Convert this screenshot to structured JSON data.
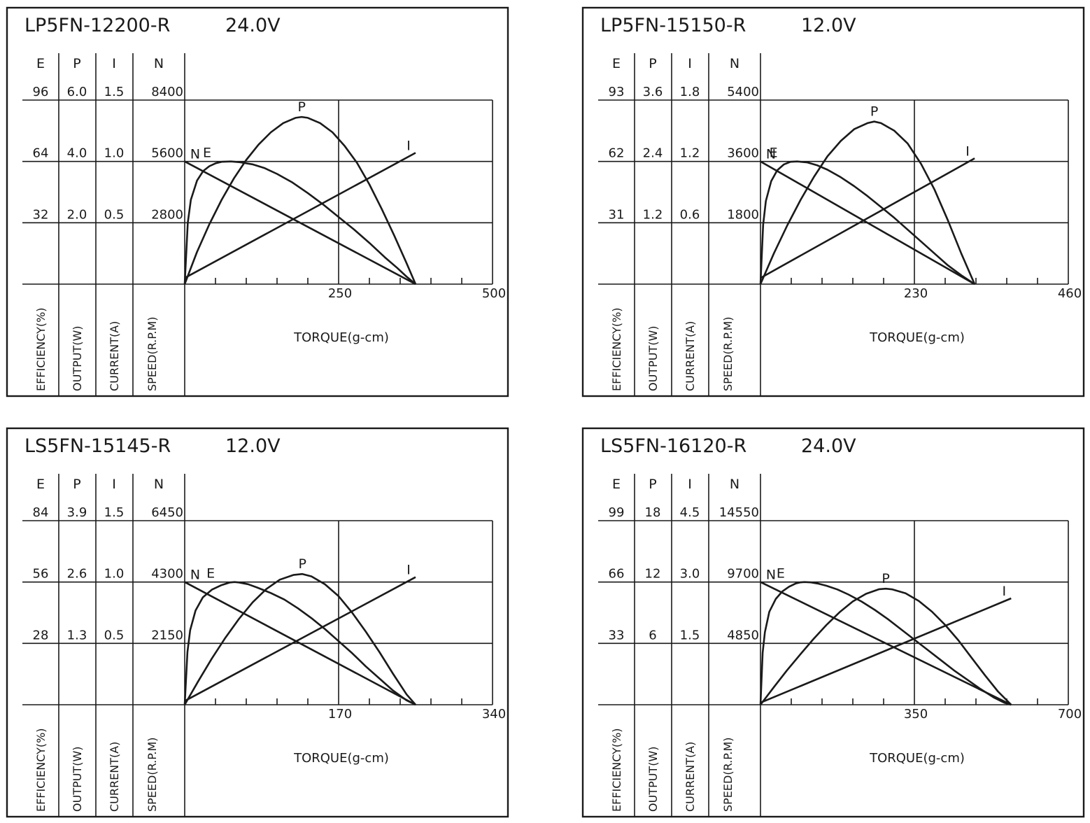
{
  "columns": [
    {
      "key": "E",
      "label": "EFFICIENCY(%)"
    },
    {
      "key": "P",
      "label": "OUTPUT(W)"
    },
    {
      "key": "I",
      "label": "CURRENT(A)"
    },
    {
      "key": "N",
      "label": "SPEED(R.P.M)"
    }
  ],
  "chart_data": [
    {
      "type": "line",
      "title": "LP5FN-12200-R",
      "voltage": "24.0V",
      "xlabel": "TORQUE(g-cm)",
      "xlim": [
        0,
        500
      ],
      "x_ticks": [
        "250",
        "500"
      ],
      "scales": [
        {
          "key": "E",
          "ticks": [
            "32",
            "64",
            "96"
          ]
        },
        {
          "key": "P",
          "ticks": [
            "2.0",
            "4.0",
            "6.0"
          ]
        },
        {
          "key": "I",
          "ticks": [
            "0.5",
            "1.0",
            "1.5"
          ]
        },
        {
          "key": "N",
          "ticks": [
            "2800",
            "5600",
            "8400"
          ]
        }
      ],
      "series": [
        {
          "name": "N",
          "unit_max": 8400,
          "x": [
            0,
            375
          ],
          "y": [
            5600,
            0
          ]
        },
        {
          "name": "I",
          "unit_max": 1.5,
          "x": [
            0,
            375
          ],
          "y": [
            0.05,
            1.07
          ]
        },
        {
          "name": "E",
          "unit_max": 96,
          "x": [
            0,
            5,
            10,
            20,
            30,
            40,
            50,
            60,
            75,
            90,
            110,
            130,
            150,
            175,
            200,
            225,
            250,
            275,
            300,
            325,
            345,
            360,
            375
          ],
          "y": [
            0,
            32,
            44,
            54,
            59,
            61.5,
            63,
            63.8,
            64,
            63.6,
            62.5,
            60.5,
            57.5,
            53,
            47.5,
            41.5,
            35,
            28.5,
            21.5,
            14,
            8.5,
            4,
            0
          ]
        },
        {
          "name": "P",
          "unit_max": 6.0,
          "x": [
            0,
            20,
            40,
            60,
            80,
            100,
            120,
            140,
            160,
            180,
            190,
            200,
            220,
            240,
            260,
            280,
            300,
            320,
            340,
            360,
            375
          ],
          "y": [
            0,
            1.05,
            1.95,
            2.75,
            3.45,
            4.05,
            4.55,
            4.95,
            5.25,
            5.42,
            5.45,
            5.42,
            5.25,
            4.95,
            4.5,
            3.95,
            3.25,
            2.45,
            1.6,
            0.7,
            0
          ]
        }
      ]
    },
    {
      "type": "line",
      "title": "LP5FN-15150-R",
      "voltage": "12.0V",
      "xlabel": "TORQUE(g-cm)",
      "xlim": [
        0,
        460
      ],
      "x_ticks": [
        "230",
        "460"
      ],
      "scales": [
        {
          "key": "E",
          "ticks": [
            "31",
            "62",
            "93"
          ]
        },
        {
          "key": "P",
          "ticks": [
            "1.2",
            "2.4",
            "3.6"
          ]
        },
        {
          "key": "I",
          "ticks": [
            "0.6",
            "1.2",
            "1.8"
          ]
        },
        {
          "key": "N",
          "ticks": [
            "1800",
            "3600",
            "5400"
          ]
        }
      ],
      "series": [
        {
          "name": "N",
          "unit_max": 5400,
          "x": [
            0,
            320
          ],
          "y": [
            3600,
            0
          ]
        },
        {
          "name": "I",
          "unit_max": 1.8,
          "x": [
            0,
            320
          ],
          "y": [
            0.06,
            1.23
          ]
        },
        {
          "name": "E",
          "unit_max": 93,
          "x": [
            0,
            4,
            8,
            16,
            25,
            35,
            45,
            55,
            70,
            85,
            100,
            120,
            140,
            160,
            180,
            200,
            220,
            240,
            260,
            280,
            300,
            320
          ],
          "y": [
            0,
            30,
            42,
            52,
            57.5,
            60.5,
            61.8,
            62,
            61.5,
            60,
            57.8,
            54,
            49.5,
            44.5,
            39,
            33.5,
            27.5,
            21.5,
            15.5,
            9.5,
            4.5,
            0
          ]
        },
        {
          "name": "P",
          "unit_max": 3.6,
          "x": [
            0,
            20,
            40,
            60,
            80,
            100,
            120,
            140,
            160,
            170,
            180,
            200,
            220,
            240,
            260,
            280,
            300,
            320
          ],
          "y": [
            0,
            0.6,
            1.15,
            1.65,
            2.1,
            2.5,
            2.8,
            3.03,
            3.15,
            3.18,
            3.15,
            3.0,
            2.75,
            2.35,
            1.85,
            1.25,
            0.6,
            0
          ]
        }
      ]
    },
    {
      "type": "line",
      "title": "LS5FN-15145-R",
      "voltage": "12.0V",
      "xlabel": "TORQUE(g-cm)",
      "xlim": [
        0,
        340
      ],
      "x_ticks": [
        "170",
        "340"
      ],
      "scales": [
        {
          "key": "E",
          "ticks": [
            "28",
            "56",
            "84"
          ]
        },
        {
          "key": "P",
          "ticks": [
            "1.3",
            "2.6",
            "3.9"
          ]
        },
        {
          "key": "I",
          "ticks": [
            "0.5",
            "1.0",
            "1.5"
          ]
        },
        {
          "key": "N",
          "ticks": [
            "2150",
            "4300",
            "6450"
          ]
        }
      ],
      "series": [
        {
          "name": "N",
          "unit_max": 6450,
          "x": [
            0,
            255
          ],
          "y": [
            4300,
            0
          ]
        },
        {
          "name": "I",
          "unit_max": 1.5,
          "x": [
            0,
            255
          ],
          "y": [
            0.03,
            1.04
          ]
        },
        {
          "name": "E",
          "unit_max": 84,
          "x": [
            0,
            3,
            6,
            12,
            20,
            30,
            40,
            50,
            55,
            60,
            70,
            80,
            95,
            110,
            125,
            140,
            155,
            170,
            185,
            200,
            215,
            230,
            245,
            255
          ],
          "y": [
            0,
            24,
            34,
            43,
            49,
            52.5,
            54.5,
            55.8,
            56,
            55.8,
            55,
            53.5,
            51,
            48,
            44,
            39.5,
            34.5,
            29,
            23.5,
            17.5,
            12,
            6.5,
            2,
            0
          ]
        },
        {
          "name": "P",
          "unit_max": 3.9,
          "x": [
            0,
            15,
            30,
            45,
            60,
            75,
            90,
            105,
            120,
            130,
            140,
            155,
            170,
            185,
            200,
            215,
            230,
            245,
            255
          ],
          "y": [
            0,
            0.5,
            0.98,
            1.42,
            1.82,
            2.17,
            2.45,
            2.65,
            2.75,
            2.77,
            2.72,
            2.55,
            2.3,
            1.95,
            1.55,
            1.12,
            0.66,
            0.22,
            0
          ]
        }
      ]
    },
    {
      "type": "line",
      "title": "LS5FN-16120-R",
      "voltage": "24.0V",
      "xlabel": "TORQUE(g-cm)",
      "xlim": [
        0,
        700
      ],
      "x_ticks": [
        "350",
        "700"
      ],
      "scales": [
        {
          "key": "E",
          "ticks": [
            "33",
            "66",
            "99"
          ]
        },
        {
          "key": "P",
          "ticks": [
            "6",
            "12",
            "18"
          ]
        },
        {
          "key": "I",
          "ticks": [
            "1.5",
            "3.0",
            "4.5"
          ]
        },
        {
          "key": "N",
          "ticks": [
            "4850",
            "9700",
            "14550"
          ]
        }
      ],
      "series": [
        {
          "name": "N",
          "unit_max": 14550,
          "x": [
            0,
            570
          ],
          "y": [
            9700,
            0
          ]
        },
        {
          "name": "I",
          "unit_max": 4.5,
          "x": [
            0,
            570
          ],
          "y": [
            0.05,
            2.6
          ]
        },
        {
          "name": "E",
          "unit_max": 99,
          "x": [
            0,
            5,
            10,
            20,
            35,
            50,
            65,
            80,
            90,
            100,
            115,
            130,
            150,
            175,
            200,
            230,
            260,
            290,
            320,
            350,
            380,
            410,
            440,
            470,
            500,
            530,
            555,
            570
          ],
          "y": [
            0,
            28,
            39,
            50,
            57,
            61,
            63.5,
            65.2,
            65.8,
            66,
            65.8,
            65.2,
            64,
            62,
            59.3,
            55.5,
            51,
            46,
            40.5,
            35,
            29.5,
            24,
            18.5,
            13.5,
            8.5,
            4,
            1,
            0
          ]
        },
        {
          "name": "P",
          "unit_max": 18,
          "x": [
            0,
            30,
            60,
            90,
            120,
            150,
            180,
            210,
            240,
            270,
            285,
            300,
            330,
            360,
            390,
            420,
            450,
            480,
            510,
            540,
            570
          ],
          "y": [
            0,
            1.7,
            3.35,
            4.9,
            6.4,
            7.8,
            9.05,
            10.1,
            10.85,
            11.3,
            11.35,
            11.28,
            10.9,
            10.15,
            9.1,
            7.8,
            6.3,
            4.6,
            2.9,
            1.3,
            0
          ]
        }
      ]
    }
  ]
}
